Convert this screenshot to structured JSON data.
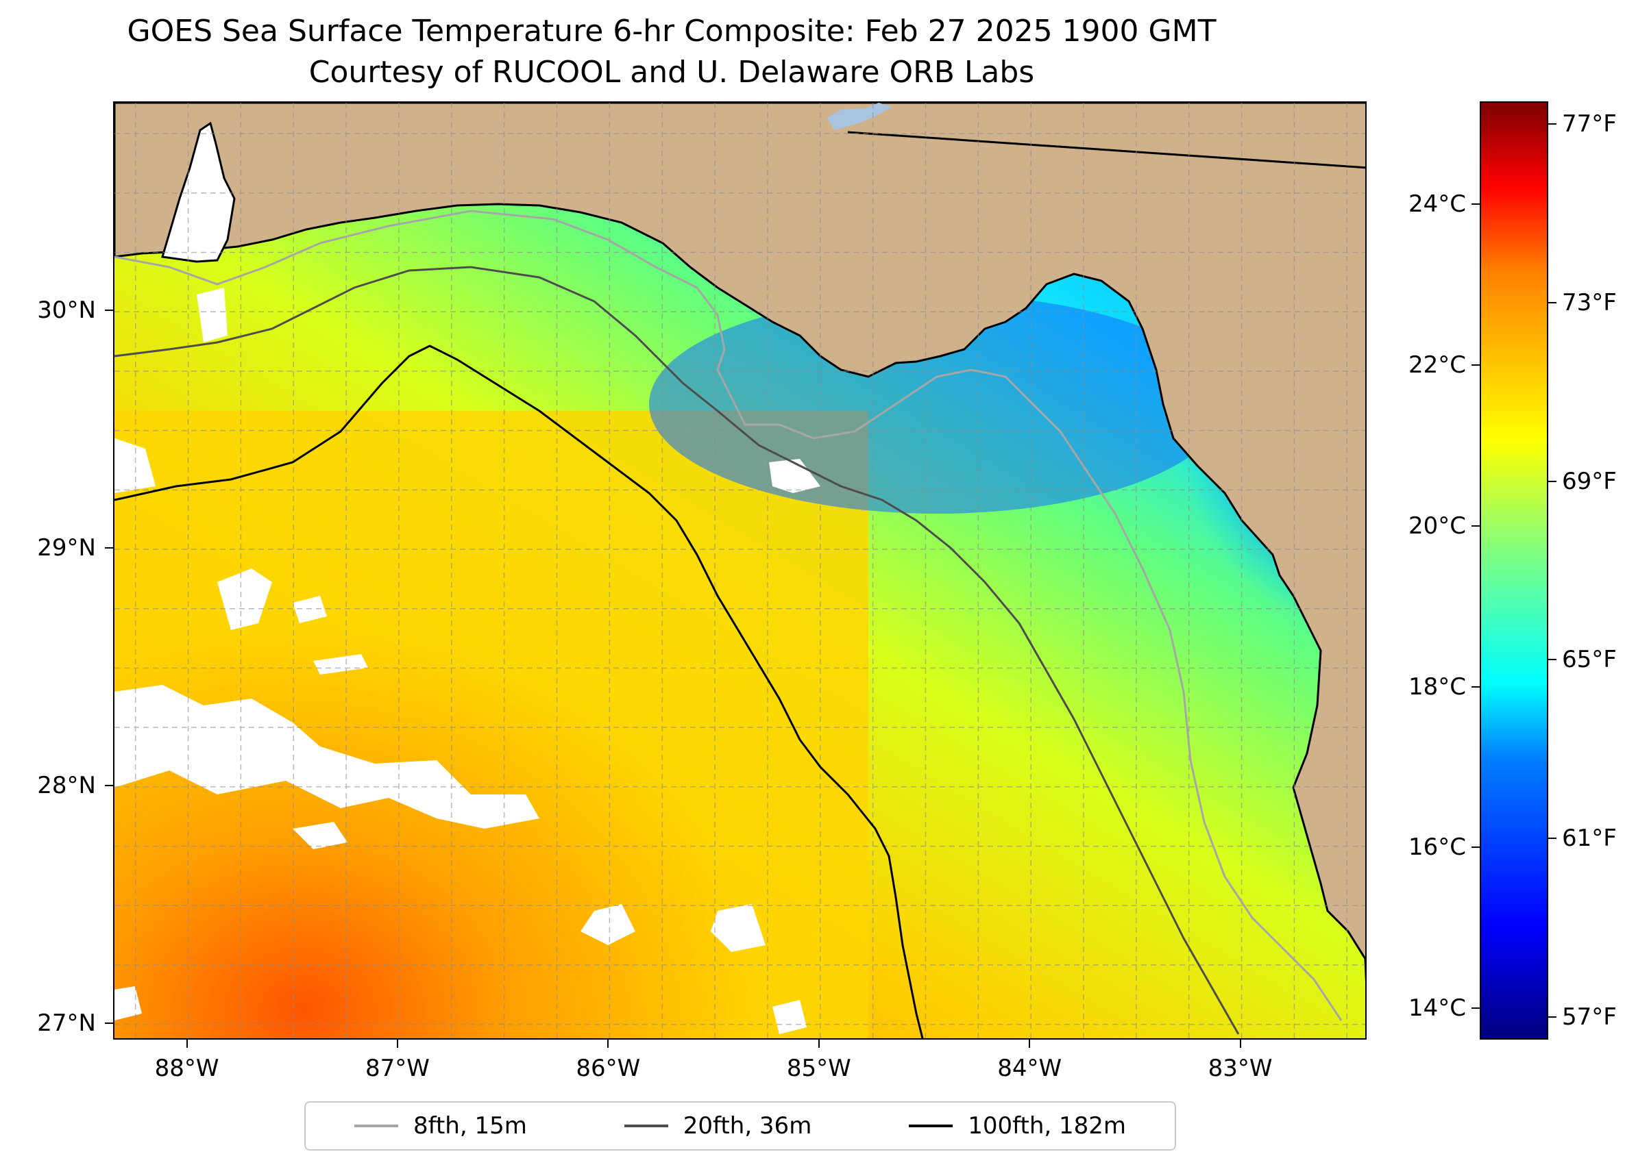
{
  "title": "GOES Sea Surface Temperature 6-hr Composite: Feb 27 2025 1900 GMT",
  "subtitle": "Courtesy of RUCOOL and U. Delaware ORB Labs",
  "map": {
    "lon_range": [
      -88.35,
      -82.4
    ],
    "lat_range": [
      26.93,
      30.88
    ],
    "lon_ticks": [
      {
        "value": -88,
        "label": "88°W"
      },
      {
        "value": -87,
        "label": "87°W"
      },
      {
        "value": -86,
        "label": "86°W"
      },
      {
        "value": -85,
        "label": "85°W"
      },
      {
        "value": -84,
        "label": "84°W"
      },
      {
        "value": -83,
        "label": "83°W"
      }
    ],
    "lat_ticks": [
      {
        "value": 30,
        "label": "30°N"
      },
      {
        "value": 29,
        "label": "29°N"
      },
      {
        "value": 28,
        "label": "28°N"
      },
      {
        "value": 27,
        "label": "27°N"
      }
    ],
    "land_color": "#cfb28c",
    "nodata_color": "#ffffff",
    "grid": "dashed"
  },
  "colorbar": {
    "celsius_ticks": [
      "24°C",
      "22°C",
      "20°C",
      "18°C",
      "16°C",
      "14°C"
    ],
    "fahrenheit_ticks": [
      "77°F",
      "73°F",
      "69°F",
      "65°F",
      "61°F",
      "57°F"
    ],
    "colormap": "jet",
    "range_f": [
      56.5,
      77.5
    ]
  },
  "legend": {
    "items": [
      {
        "label": "8fth, 15m",
        "color": "#a6a6a6"
      },
      {
        "label": "20fth, 36m",
        "color": "#4d4d4d"
      },
      {
        "label": "100fth, 182m",
        "color": "#000000"
      }
    ],
    "placement": "bottom-center"
  }
}
